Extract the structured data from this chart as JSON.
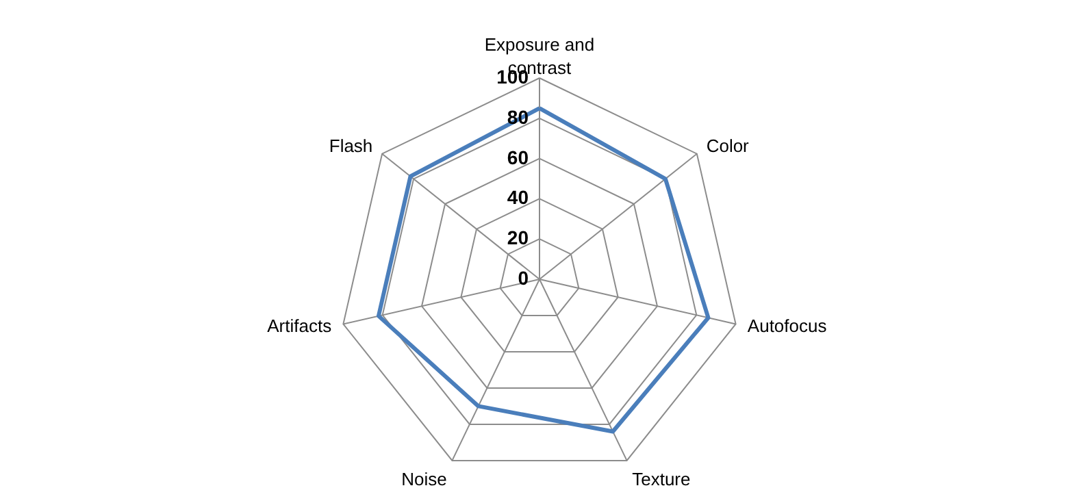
{
  "chart_data": {
    "type": "radar",
    "categories": [
      "Exposure and contrast",
      "Color",
      "Autofocus",
      "Texture",
      "Noise",
      "Artifacts",
      "Flash"
    ],
    "series": [
      {
        "color": "#4a7ebb",
        "values": [
          85,
          80,
          86,
          84,
          70,
          82,
          82
        ]
      }
    ],
    "ylim": [
      0,
      100
    ],
    "yticks": [
      0,
      20,
      40,
      60,
      80,
      100
    ],
    "grid": true
  }
}
